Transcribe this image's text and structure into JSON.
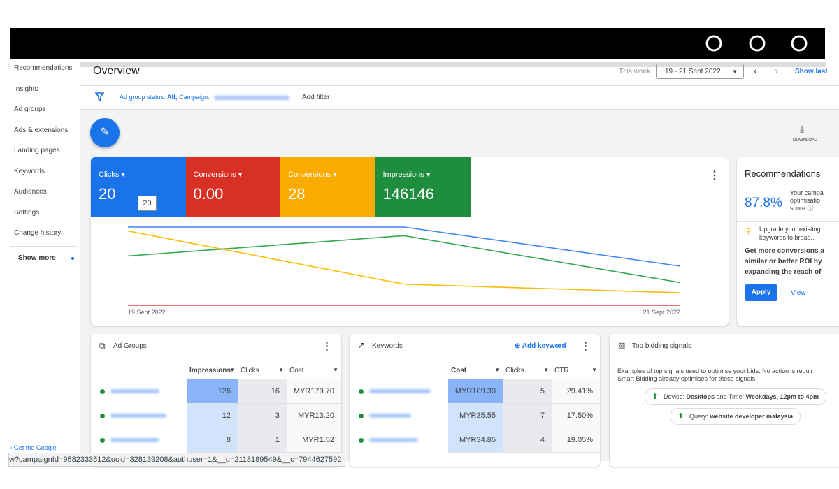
{
  "browser": {
    "status_url": "w?campaignId=9582333512&ocid=328139208&authuser=1&__u=2118189549&__c=7944627592"
  },
  "sidebar": {
    "items": [
      "Recommendations",
      "Insights",
      "Ad groups",
      "Ads & extensions",
      "Landing pages",
      "Keywords",
      "Audiences",
      "Settings",
      "Change history"
    ],
    "show_more": "Show more",
    "footer": "Get the Google"
  },
  "header": {
    "title": "Overview",
    "range_label": "This week",
    "date_range": "19 - 21 Sept 2022",
    "show_last": "Show last"
  },
  "filter": {
    "status_label": "Ad group status:",
    "status_value": "All;",
    "campaign_label": "Campaign:",
    "add_filter": "Add filter"
  },
  "download": "DOWNLOAD",
  "chart_data": {
    "type": "line",
    "x": [
      "19 Sept 2022",
      null,
      "21 Sept 2022"
    ],
    "ylim": [
      0,
      100
    ],
    "series": [
      {
        "name": "Clicks",
        "value": 20,
        "color": "#4285f4",
        "tile_color": "#1a73e8",
        "values": [
          100,
          100,
          50
        ]
      },
      {
        "name": "Conversions",
        "value": "0.00",
        "color": "#ea4335",
        "tile_color": "#d93025",
        "values": [
          0,
          0,
          0
        ]
      },
      {
        "name": "Conversions",
        "value": 28,
        "color": "#fbbc04",
        "tile_color": "#f9ab00",
        "values": [
          95,
          27,
          16
        ]
      },
      {
        "name": "Impressions",
        "value": 146146,
        "color": "#34a853",
        "tile_color": "#1e8e3e",
        "values": [
          63,
          89,
          29
        ]
      }
    ]
  },
  "recommendations": {
    "title": "Recommendations",
    "score": "87.8%",
    "score_text": [
      "Your campa",
      "optimisatio",
      "score"
    ],
    "suggestion": [
      "Upgrade your existing",
      "keywords to broad..."
    ],
    "body": [
      "Get more conversions a",
      "similar or better ROI by",
      "expanding the reach of"
    ],
    "apply": "Apply",
    "view": "View"
  },
  "ad_groups": {
    "title": "Ad Groups",
    "columns": [
      "Impressions",
      "Clicks",
      "Cost"
    ],
    "rows": [
      [
        126,
        16,
        "MYR179.70"
      ],
      [
        12,
        3,
        "MYR13.20"
      ],
      [
        8,
        1,
        "MYR1.52"
      ]
    ]
  },
  "keywords": {
    "title": "Keywords",
    "add": "Add keyword",
    "columns": [
      "Cost",
      "Clicks",
      "CTR"
    ],
    "rows": [
      [
        "MYR109.30",
        5,
        "29.41%"
      ],
      [
        "MYR35.55",
        7,
        "17.50%"
      ],
      [
        "MYR34.85",
        4,
        "19.05%"
      ]
    ]
  },
  "signals": {
    "title": "Top bidding signals",
    "description": [
      "Examples of top signals used to optimise your bids. No action is requir",
      "Smart Bidding already optimises for these signals."
    ],
    "chips": [
      [
        "Device:",
        "Desktops",
        "and Time:",
        "Weekdays, 12pm to 4pm"
      ],
      [
        "Query:",
        "website developer malaysia"
      ]
    ]
  }
}
